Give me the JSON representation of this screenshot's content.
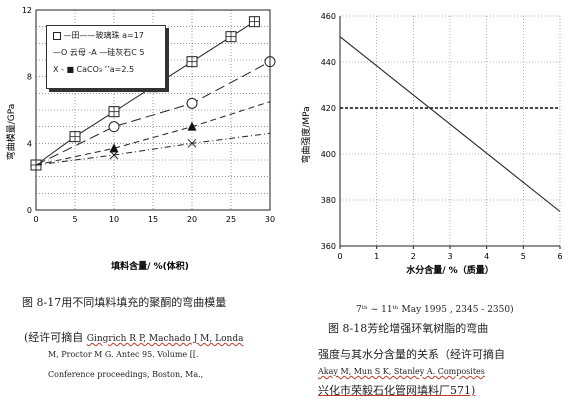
{
  "figure_left": {
    "legend": {
      "items": [
        {
          "symbol": "square",
          "text": "—田——玻璃珠 a=17"
        },
        {
          "symbol": "circle",
          "text": "—O 云母 -A —硅灰石C 5"
        },
        {
          "symbol": "cross",
          "text": "X - ■ CaCO₃ ’’a=2.5"
        }
      ]
    },
    "ylabel": "弯曲模量/GPa",
    "xlabel": "填料含量/ %(体积)",
    "chart_data": {
      "type": "line",
      "xlim": [
        0,
        30
      ],
      "ylim": [
        0,
        12
      ],
      "x_ticks": [
        "0",
        "5",
        "10",
        "15",
        "20",
        "25",
        "30"
      ],
      "y_ticks": [
        "12",
        "8",
        "4",
        "0"
      ],
      "y_tick_values": [
        12,
        8,
        4,
        0
      ],
      "series": [
        {
          "name": "玻璃珠 a=17",
          "marker": "square",
          "line": "solid",
          "x": [
            0,
            5,
            10,
            15,
            20,
            25,
            28
          ],
          "y": [
            2.7,
            4.4,
            5.9,
            7.4,
            8.9,
            10.4,
            11.3
          ]
        },
        {
          "name": "云母",
          "marker": "circle",
          "line": "dash-long",
          "x": [
            0,
            10,
            20,
            30
          ],
          "y": [
            2.7,
            5.0,
            6.4,
            8.9
          ]
        },
        {
          "name": "硅灰石C 5",
          "marker": "triangle",
          "line": "dash",
          "x": [
            0,
            10,
            20,
            30
          ],
          "y": [
            2.7,
            3.7,
            5.0,
            6.5
          ]
        },
        {
          "name": "CaCO₃ a=2.5",
          "marker": "cross",
          "line": "dash-dot",
          "x": [
            0,
            10,
            20,
            30
          ],
          "y": [
            2.7,
            3.3,
            4.0,
            4.6
          ]
        }
      ]
    }
  },
  "figure_right": {
    "ylabel": "弯曲强度/MPa",
    "xlabel": "水分含量/ %（质量）",
    "chart_data": {
      "type": "line",
      "xlim": [
        0,
        6
      ],
      "ylim": [
        360,
        460
      ],
      "x_ticks": [
        "0",
        "1",
        "2",
        "3",
        "4",
        "5",
        "6"
      ],
      "y_ticks": [
        "460",
        "440",
        "420",
        "400",
        "380",
        "360"
      ],
      "y_tick_values": [
        460,
        440,
        420,
        400,
        380,
        360
      ],
      "dashed_reference_y": 420,
      "series": [
        {
          "line": "solid",
          "x": [
            0,
            6
          ],
          "y": [
            451,
            375
          ]
        }
      ]
    }
  },
  "captions": {
    "left_line1": "图 8-17用不同填料填充的聚酮的弯曲模量",
    "left_line2_prefix": "(经许可摘自 ",
    "left_line2_cite": "Gingrich R P, Machado J M, Londa",
    "left_line3": "M, Proctor M G. Antec 95. Volume [[.",
    "left_line4": "Conference proceedings, Boston, Ma.,",
    "right_top": "7ᵗʰ ~ 11ᵗʰ May 1995 , 2345 - 2350)",
    "right_line1": "图 8-18芳纶增强环氧树脂的弯曲",
    "right_line2": "强度与其水分含量的关系（经许可摘自",
    "right_line3": "Akay M, Mun S K, Stanley A. Composites",
    "right_line4": "兴化市荣毅石化管网填料厂571)"
  }
}
